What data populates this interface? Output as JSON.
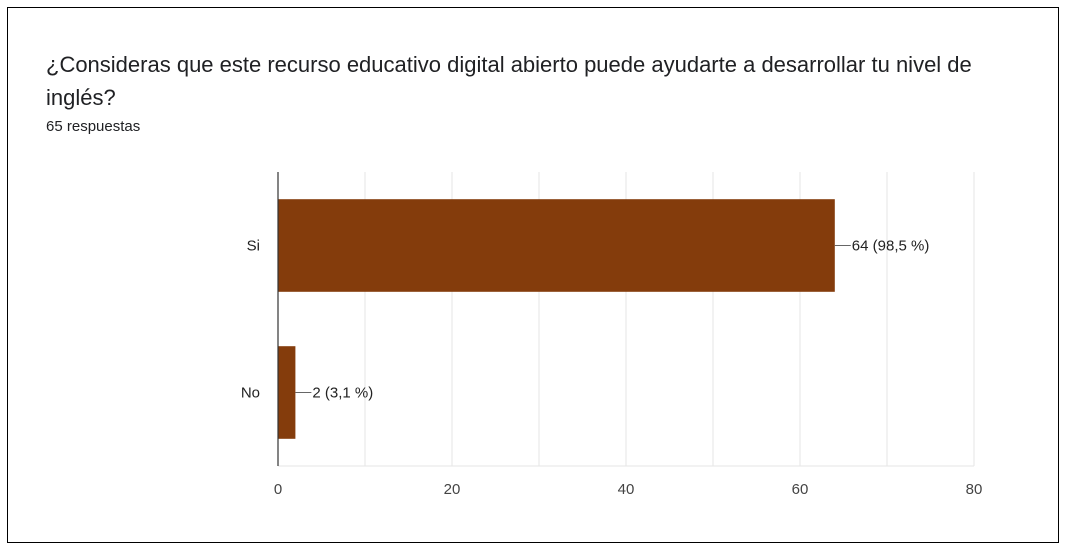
{
  "question": {
    "title": "¿Consideras que este recurso educativo digital abierto puede ayudarte a desarrollar tu nivel de inglés?",
    "response_count": "65 respuestas"
  },
  "colors": {
    "bar": "#843c0c",
    "grid": "#e6e6e6",
    "axis": "#333333",
    "text": "#222222"
  },
  "chart_data": {
    "type": "bar",
    "orientation": "horizontal",
    "categories": [
      "Si",
      "No"
    ],
    "values": [
      64,
      2
    ],
    "data_labels": [
      "64 (98,5 %)",
      "2 (3,1 %)"
    ],
    "x_ticks": [
      0,
      20,
      40,
      60,
      80
    ],
    "xlim": [
      0,
      80
    ],
    "grid": true
  }
}
